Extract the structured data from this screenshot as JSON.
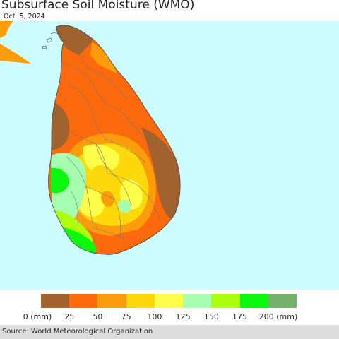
{
  "title": "Subsurface Soil Moisture (WMO)",
  "date": "Oct. 5, 2024",
  "source": "Source: World Meteorological Organization",
  "colors": {
    "ocean": "#ccfcff",
    "land_outside": "#ffffff",
    "class_0_25": "#a0632f",
    "class_25_50": "#fd6a0d",
    "class_50_75": "#fd9d0b",
    "class_75_100": "#fdd90b",
    "class_100_125": "#fefe4a",
    "class_125_150": "#a7fdaf",
    "class_150_175": "#aefd0c",
    "class_175_200": "#0cf70e",
    "class_200_plus": "#74b16d",
    "boundary": "#777777"
  },
  "legend": {
    "colors": [
      "#a0632f",
      "#fd6a0d",
      "#fd9d0b",
      "#fdd90b",
      "#fefe4a",
      "#a7fdaf",
      "#aefd0c",
      "#0cf70e",
      "#74b16d"
    ],
    "labels": [
      "0 (mm)",
      "25",
      "50",
      "75",
      "100",
      "125",
      "150",
      "175",
      "200 (mm)"
    ]
  }
}
